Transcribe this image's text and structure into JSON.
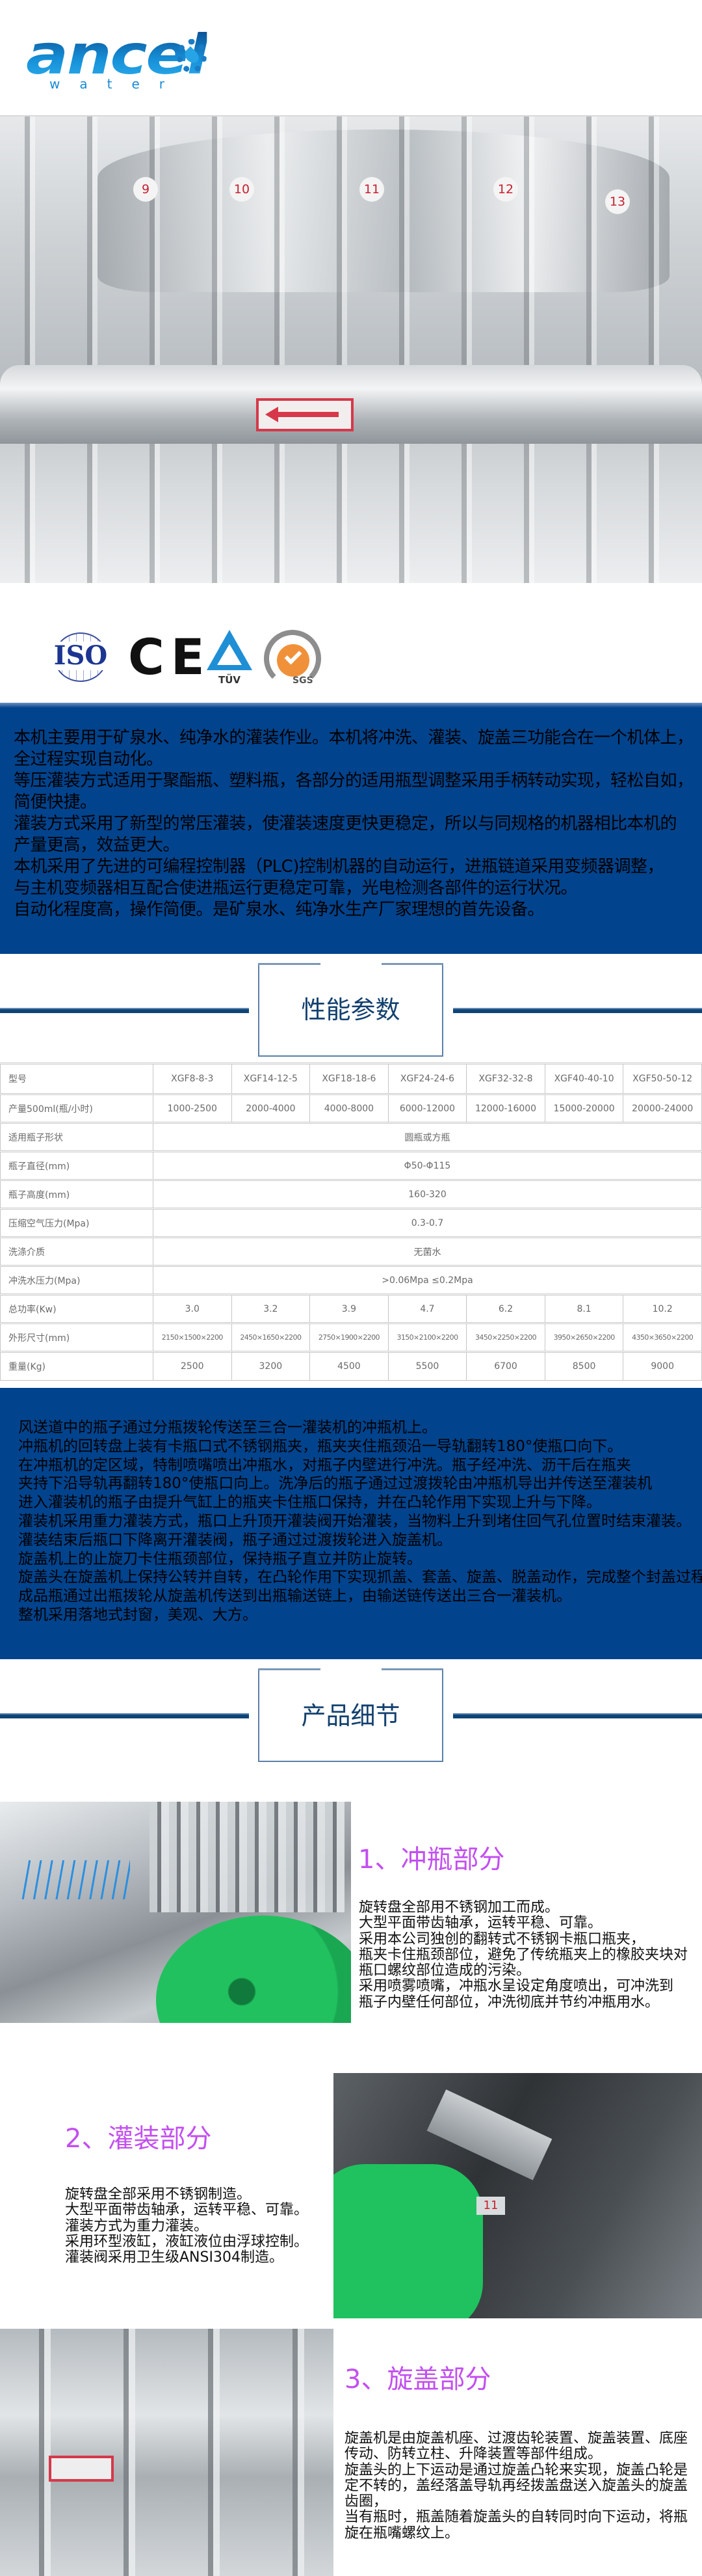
{
  "brand": {
    "logo_text": "ancel",
    "logo_subtext": "water"
  },
  "hero": {
    "station_labels": [
      "9",
      "10",
      "11",
      "12",
      "13"
    ]
  },
  "certifications": [
    "ISO",
    "CE",
    "TÜV",
    "SGS"
  ],
  "intro": {
    "lines": [
      "本机主要用于矿泉水、纯净水的灌装作业。本机将冲洗、灌装、旋盖三功能合在一个机体上，",
      "全过程实现自动化。",
      "等压灌装方式适用于聚酯瓶、塑料瓶，各部分的适用瓶型调整采用手柄转动实现，轻松自如，",
      "简便快捷。",
      "灌装方式采用了新型的常压灌装，使灌装速度更快更稳定，所以与同规格的机器相比本机的",
      "产量更高，效益更大。",
      "本机采用了先进的可编程控制器（PLC)控制机器的自动运行，进瓶链道采用变频器调整，",
      "与主机变频器相互配合使进瓶运行更稳定可靠，光电检测各部件的运行状况。",
      "自动化程度高，操作简便。是矿泉水、纯净水生产厂家理想的首先设备。"
    ]
  },
  "specs": {
    "title": "性能参数",
    "rows": [
      {
        "label": "型号",
        "values": [
          "XGF8-8-3",
          "XGF14-12-5",
          "XGF18-18-6",
          "XGF24-24-6",
          "XGF32-32-8",
          "XGF40-40-10",
          "XGF50-50-12"
        ]
      },
      {
        "label": "产量500ml(瓶/小时)",
        "values": [
          "1000-2500",
          "2000-4000",
          "4000-8000",
          "6000-12000",
          "12000-16000",
          "15000-20000",
          "20000-24000"
        ]
      },
      {
        "label": "适用瓶子形状",
        "merged": "圆瓶或方瓶"
      },
      {
        "label": "瓶子直径(mm)",
        "merged": "Φ50-Φ115"
      },
      {
        "label": "瓶子高度(mm)",
        "merged": "160-320"
      },
      {
        "label": "压缩空气压力(Mpa)",
        "merged": "0.3-0.7"
      },
      {
        "label": "洗涤介质",
        "merged": "无菌水"
      },
      {
        "label": "冲洗水压力(Mpa)",
        "merged": ">0.06Mpa ≤0.2Mpa"
      },
      {
        "label": "总功率(Kw)",
        "values": [
          "3.0",
          "3.2",
          "3.9",
          "4.7",
          "6.2",
          "8.1",
          "10.2"
        ]
      },
      {
        "label": "外形尺寸(mm)",
        "values": [
          "2150×1500×2200",
          "2450×1650×2200",
          "2750×1900×2200",
          "3150×2100×2200",
          "3450×2250×2200",
          "3950×2650×2200",
          "4350×3650×2200"
        ],
        "dims": true
      },
      {
        "label": "重量(Kg)",
        "values": [
          "2500",
          "3200",
          "4500",
          "5500",
          "6700",
          "8500",
          "9000"
        ]
      }
    ]
  },
  "process": {
    "lines": [
      "风送道中的瓶子通过分瓶拨轮传送至三合一灌装机的冲瓶机上。",
      "冲瓶机的回转盘上装有卡瓶口式不锈钢瓶夹，瓶夹夹住瓶颈沿一导轨翻转180°使瓶口向下。",
      "在冲瓶机的定区域，特制喷嘴喷出冲瓶水，对瓶子内壁进行冲洗。瓶子经冲洗、沥干后在瓶夹",
      "夹持下沿导轨再翻转180°使瓶口向上。洗净后的瓶子通过过渡拨轮由冲瓶机导出并传送至灌装机",
      "进入灌装机的瓶子由提升气缸上的瓶夹卡住瓶口保持，并在凸轮作用下实现上升与下降。",
      "灌装机采用重力灌装方式，瓶口上升顶开灌装阀开始灌装，当物料上升到堵住回气孔位置时结束灌装。",
      "灌装结束后瓶口下降离开灌装阀，瓶子通过过渡拨轮进入旋盖机。",
      "旋盖机上的止旋刀卡住瓶颈部位，保持瓶子直立并防止旋转。",
      "旋盖头在旋盖机上保持公转并自转，在凸轮作用下实现抓盖、套盖、旋盖、脱盖动作，完成整个封盖过程。",
      "成品瓶通过出瓶拨轮从旋盖机传送到出瓶输送链上，由输送链传送出三合一灌装机。",
      "整机采用落地式封窗，美观、大方。"
    ]
  },
  "details": {
    "title": "产品细节",
    "sections": [
      {
        "title": "1、冲瓶部分",
        "lines": [
          "旋转盘全部用不锈钢加工而成。",
          "大型平面带齿轴承，运转平稳、可靠。",
          "采用本公司独创的翻转式不锈钢卡瓶口瓶夹，",
          "瓶夹卡住瓶颈部位，避免了传统瓶夹上的橡胶夹块对",
          "瓶口螺纹部位造成的污染。",
          "采用喷雾喷嘴，冲瓶水呈设定角度喷出，可冲洗到",
          "瓶子内壁任何部位，冲洗彻底并节约冲瓶用水。"
        ]
      },
      {
        "title": "2、灌装部分",
        "lines": [
          "旋转盘全部采用不锈钢制造。",
          "大型平面带齿轴承，运转平稳、可靠。",
          "灌装方式为重力灌装。",
          "采用环型液缸，液缸液位由浮球控制。",
          "灌装阀采用卫生级ANSI304制造。"
        ]
      },
      {
        "title": "3、旋盖部分",
        "lines": [
          "旋盖机是由旋盖机座、过渡齿轮装置、旋盖装置、底座",
          "传动、防转立柱、升降装置等部件组成。",
          "旋盖头的上下运动是通过旋盖凸轮来实现，旋盖凸轮是",
          "定不转的，盖经落盖导轨再经拨盖盘送入旋盖头的旋盖",
          "齿圈，",
          "当有瓶时，瓶盖随着旋盖头的自转同时向下运动，将瓶",
          "旋在瓶嘴螺纹上。"
        ]
      }
    ],
    "photo2_label": "11"
  },
  "colors": {
    "panel_blue": "#01438c",
    "title_navy": "#12406f",
    "section_title_purple": "#c34ff0",
    "table_text": "#6a6a6a"
  }
}
